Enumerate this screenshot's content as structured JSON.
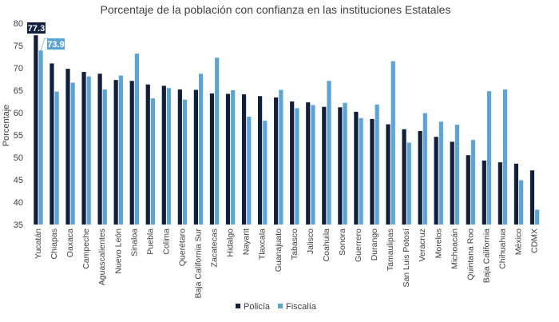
{
  "chart_data": {
    "type": "bar",
    "title": "Porcentaje de la población con confianza en las instituciones Estatales",
    "xlabel": "",
    "ylabel": "Porcentaje",
    "ylim": [
      35,
      80
    ],
    "yticks": [
      35,
      40,
      45,
      50,
      55,
      60,
      65,
      70,
      75,
      80
    ],
    "grid": false,
    "legend_position": "bottom-center",
    "categories": [
      "Yucatán",
      "Chiapas",
      "Oaxaca",
      "Campeche",
      "Aguascalientes",
      "Nuevo León",
      "Sinaloa",
      "Puebla",
      "Colima",
      "Querétaro",
      "Baja California Sur",
      "Zacatecas",
      "Hidalgo",
      "Nayarit",
      "Tlaxcala",
      "Guanajuato",
      "Tabasco",
      "Jalisco",
      "Coahuila",
      "Sonora",
      "Guerrero",
      "Durango",
      "Tamaulipas",
      "San Luis Potosí",
      "Veracruz",
      "Morelos",
      "Michoacán",
      "Quintana Roo",
      "Baja California",
      "Chihuahua",
      "México",
      "CDMX"
    ],
    "series": [
      {
        "name": "Policía",
        "color": "#0f1f3d",
        "values": [
          77.3,
          71.0,
          69.8,
          69.1,
          68.7,
          67.3,
          67.1,
          66.3,
          66.0,
          65.2,
          65.1,
          64.3,
          64.2,
          64.1,
          63.7,
          63.4,
          62.5,
          62.3,
          61.3,
          61.2,
          60.2,
          58.6,
          57.4,
          56.3,
          55.9,
          54.6,
          53.5,
          50.5,
          49.3,
          48.9,
          48.6,
          47.1
        ]
      },
      {
        "name": "Fiscalía",
        "color": "#5aa5d6",
        "values": [
          73.9,
          64.7,
          66.7,
          68.1,
          65.2,
          68.3,
          73.2,
          63.2,
          65.5,
          62.9,
          68.7,
          72.3,
          65.0,
          59.1,
          58.2,
          65.1,
          61.0,
          61.7,
          67.1,
          62.2,
          58.8,
          61.8,
          71.5,
          53.3,
          59.9,
          58.0,
          57.3,
          53.9,
          64.8,
          65.2,
          44.9,
          38.3
        ]
      }
    ],
    "callouts": [
      {
        "series": "Policía",
        "category": "Yucatán",
        "label": "77.3"
      },
      {
        "series": "Fiscalía",
        "category": "Yucatán",
        "label": "73.9"
      }
    ]
  }
}
